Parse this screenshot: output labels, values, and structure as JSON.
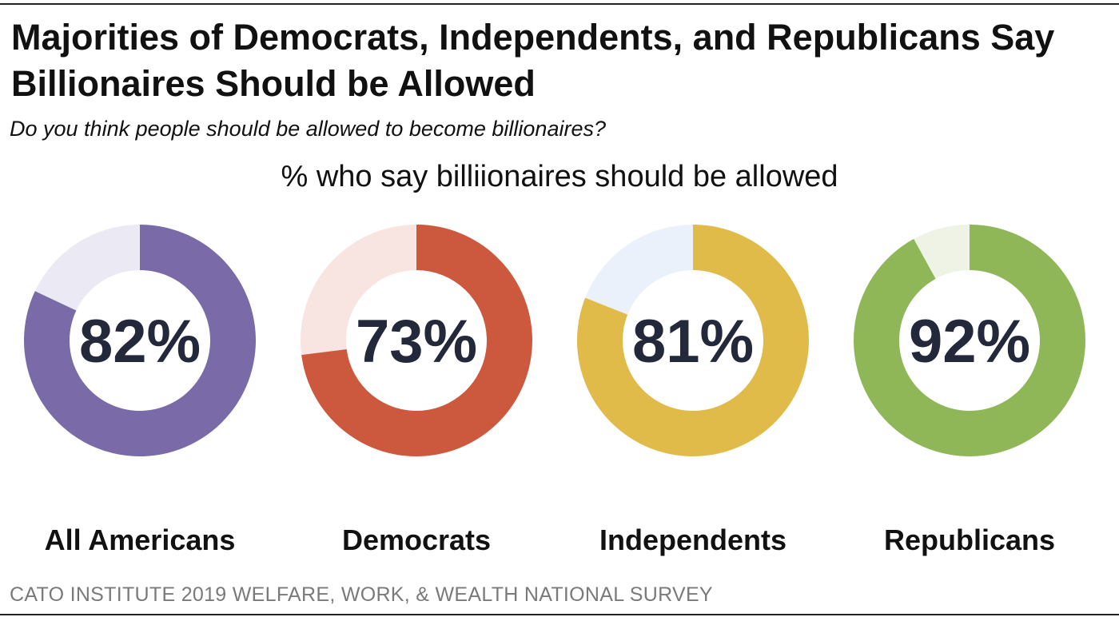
{
  "title": "Majorities of Democrats, Independents, and Republicans Say Billionaires Should be Allowed",
  "question": "Do you think people should be allowed to become billionaires?",
  "measure_label": "% who say billiionaires should be allowed",
  "source": "CATO INSTITUTE 2019 WELFARE, WORK, & WEALTH NATIONAL SURVEY",
  "chart_data": {
    "type": "pie",
    "style": "donut",
    "title": "% who say billiionaires should be allowed",
    "categories": [
      "All Americans",
      "Democrats",
      "Independents",
      "Republicans"
    ],
    "values": [
      82,
      73,
      81,
      92
    ],
    "value_labels": [
      "82%",
      "73%",
      "81%",
      "92%"
    ],
    "unit": "%",
    "colors": [
      "#7a6aa8",
      "#cc583e",
      "#e1bb4a",
      "#8fb758"
    ],
    "remainder_colors": [
      "#ebe9f3",
      "#f8e5e1",
      "#eaf1fa",
      "#eef3e6"
    ]
  }
}
